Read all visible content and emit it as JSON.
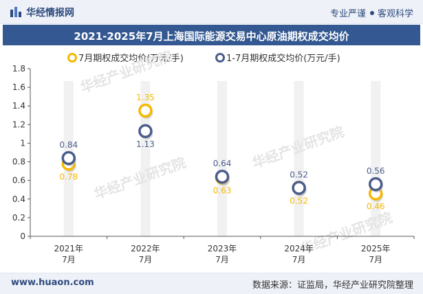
{
  "header": {
    "brand": "华经情报网",
    "tagline_left": "专业严谨",
    "tagline_right": "客观科学"
  },
  "footer": {
    "site": "www.huaon.com",
    "source": "数据来源：证监局，华经产业研究院整理"
  },
  "colors": {
    "series1": "#f5b800",
    "series2": "#4a5c8a",
    "title_bg": "#345891",
    "band": "#f1f1f1"
  },
  "watermark": {
    "text": "华经产业研究院",
    "url": "www.huaon.com"
  },
  "chart_data": {
    "type": "scatter",
    "title": "2021-2025年7月上海国际能源交易中心原油期权成交均价",
    "categories": [
      [
        "2021年",
        "7月"
      ],
      [
        "2022年",
        "7月"
      ],
      [
        "2023年",
        "7月"
      ],
      [
        "2024年",
        "7月"
      ],
      [
        "2025年",
        "7月"
      ]
    ],
    "series": [
      {
        "name": "7月期权成交均价(万元/手)",
        "values": [
          0.78,
          1.35,
          0.63,
          0.52,
          0.46
        ]
      },
      {
        "name": "1-7月期权成交均价(万元/手)",
        "values": [
          0.84,
          1.13,
          0.64,
          0.52,
          0.56
        ]
      }
    ],
    "ylim": [
      0,
      1.8
    ],
    "yticks": [
      0,
      0.2,
      0.4,
      0.6,
      0.8,
      1,
      1.2,
      1.4,
      1.6,
      1.8
    ],
    "grid": false,
    "legend": "top"
  }
}
